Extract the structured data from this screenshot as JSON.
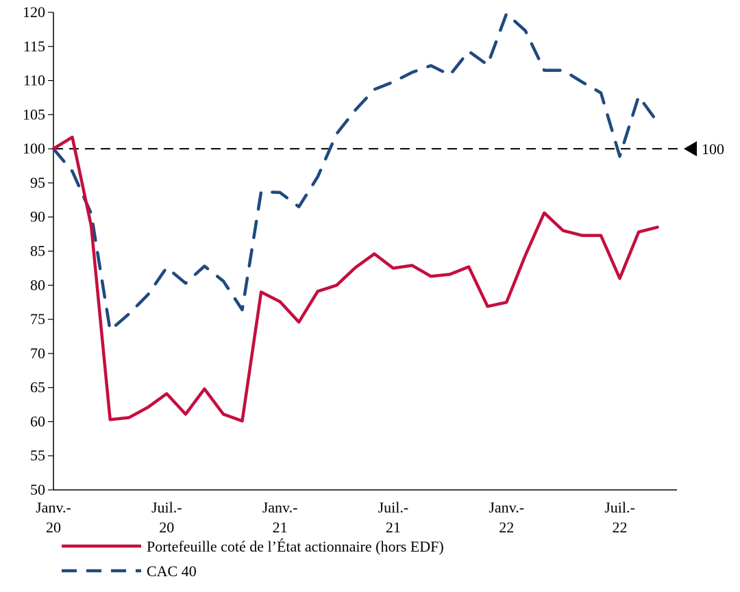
{
  "chart_data": {
    "type": "line",
    "title": "",
    "xlabel": "",
    "ylabel": "",
    "ylim": [
      50,
      120
    ],
    "y_ticks": [
      50,
      55,
      60,
      65,
      70,
      75,
      80,
      85,
      90,
      95,
      100,
      105,
      110,
      115,
      120
    ],
    "grid": false,
    "x_start": "Janv. 2020",
    "x_frequency": "monthly",
    "x_tick_labels": [
      {
        "index": 0,
        "line1": "Janv.-",
        "line2": "20"
      },
      {
        "index": 6,
        "line1": "Juil.-",
        "line2": "20"
      },
      {
        "index": 12,
        "line1": "Janv.-",
        "line2": "21"
      },
      {
        "index": 18,
        "line1": "Juil.-",
        "line2": "21"
      },
      {
        "index": 24,
        "line1": "Janv.-",
        "line2": "22"
      },
      {
        "index": 30,
        "line1": "Juil.-",
        "line2": "22"
      }
    ],
    "reference_line": {
      "value": 100,
      "label": "100"
    },
    "legend_position": "bottom",
    "series": [
      {
        "name": "Portefeuille coté de l’État actionnaire (hors EDF)",
        "color": "#C40F3E",
        "style": "solid",
        "values": [
          100,
          101.7,
          88.7,
          60.3,
          60.6,
          62.1,
          64.1,
          61.1,
          64.8,
          61.1,
          60.1,
          79.0,
          77.6,
          74.6,
          79.1,
          80.0,
          82.6,
          84.6,
          82.5,
          82.9,
          81.3,
          81.6,
          82.7,
          76.9,
          77.5,
          84.4,
          90.6,
          88.0,
          87.3,
          87.3,
          81.0,
          87.8,
          88.5
        ]
      },
      {
        "name": "CAC 40",
        "color": "#1F4A7F",
        "style": "dashed",
        "values": [
          100,
          96.7,
          90.5,
          73.4,
          75.8,
          78.6,
          82.6,
          80.3,
          82.8,
          80.6,
          76.4,
          93.7,
          93.6,
          91.5,
          95.9,
          102.2,
          105.7,
          108.7,
          109.8,
          111.2,
          112.2,
          110.8,
          114.3,
          112.3,
          119.8,
          117.3,
          111.5,
          111.5,
          109.8,
          108.2,
          98.9,
          107.7,
          103.9
        ]
      }
    ]
  }
}
